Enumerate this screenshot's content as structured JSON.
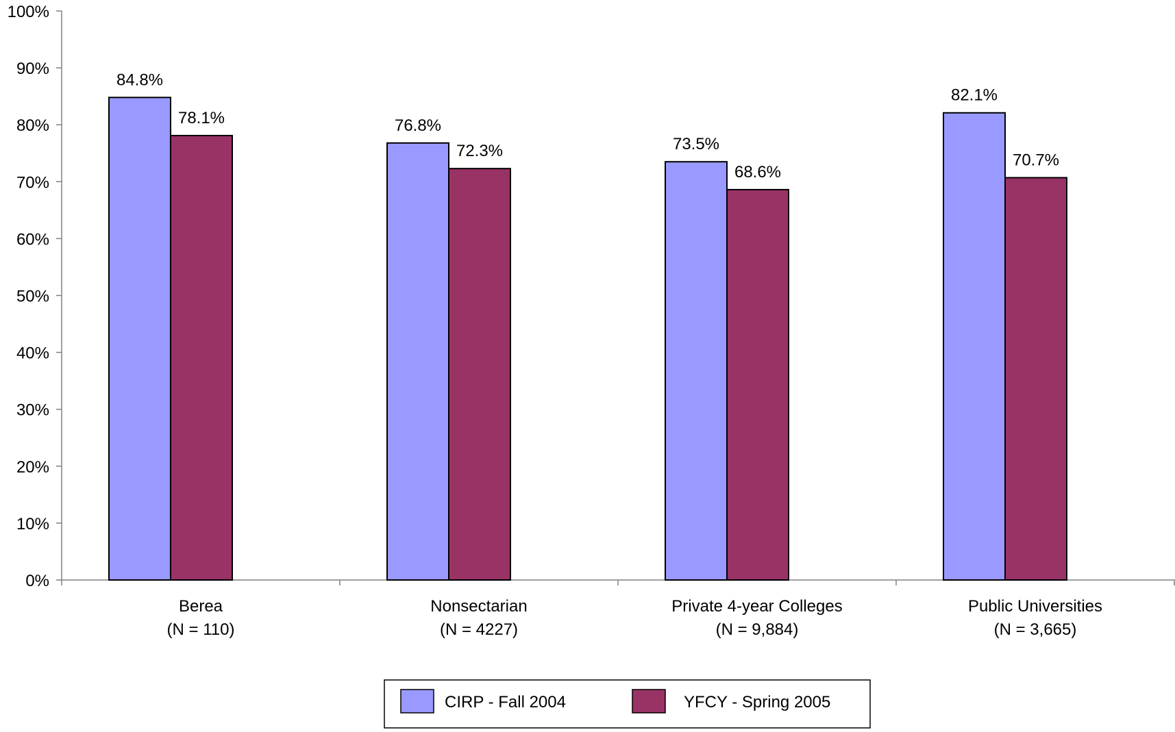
{
  "chart_data": {
    "type": "bar",
    "title": "",
    "xlabel": "",
    "ylabel": "",
    "ylim": [
      0,
      100
    ],
    "ytick_step": 10,
    "ytick_labels": [
      "0%",
      "10%",
      "20%",
      "30%",
      "40%",
      "50%",
      "60%",
      "70%",
      "80%",
      "90%",
      "100%"
    ],
    "categories": [
      [
        "Berea",
        "(N = 110)"
      ],
      [
        "Nonsectarian",
        "(N = 4227)"
      ],
      [
        "Private 4-year Colleges",
        "(N = 9,884)"
      ],
      [
        "Public Universities",
        "(N = 3,665)"
      ]
    ],
    "series": [
      {
        "name": "CIRP - Fall 2004",
        "color": "#9999ff",
        "values": [
          84.8,
          76.8,
          73.5,
          82.1
        ],
        "labels": [
          "84.8%",
          "76.8%",
          "73.5%",
          "82.1%"
        ]
      },
      {
        "name": "YFCY - Spring 2005",
        "color": "#993366",
        "values": [
          78.1,
          72.3,
          68.6,
          70.7
        ],
        "labels": [
          "78.1%",
          "72.3%",
          "68.6%",
          "70.7%"
        ]
      }
    ],
    "grid": false,
    "legend_position": "bottom-center"
  }
}
